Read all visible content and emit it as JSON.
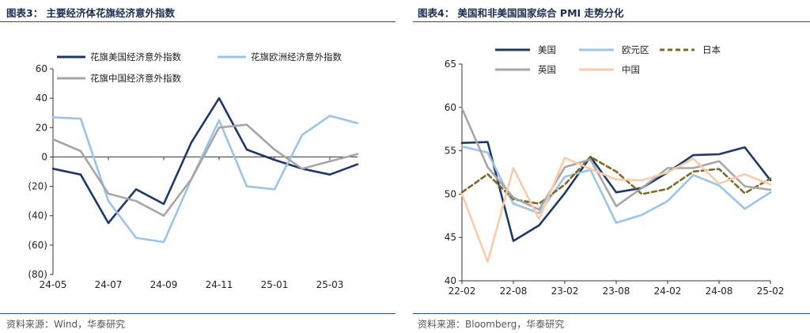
{
  "left": {
    "title": "图表3：  主要经济体花旗经济意外指数",
    "source": "资料来源：Wind，华泰研究"
  },
  "right": {
    "title": "图表4：  美国和非美国国家综合 PMI 走势分化",
    "source": "资料来源：Bloomberg，华泰研究"
  },
  "colors": {
    "navy": "#1f3864",
    "lightblue": "#9dc3e6",
    "gray": "#a6a6a6",
    "olive": "#7b6b2a",
    "peach": "#f8cbad",
    "rule": "#2c4a7c"
  },
  "chart_data": [
    {
      "type": "line",
      "title": "",
      "x": [
        "24-05",
        "24-06",
        "24-07",
        "24-08",
        "24-09",
        "24-10",
        "24-11",
        "24-12",
        "25-01",
        "25-02",
        "25-03",
        "25-04"
      ],
      "x_ticks": [
        "24-05",
        "24-07",
        "24-09",
        "24-11",
        "25-01",
        "25-03"
      ],
      "y_ticks": [
        "60",
        "40",
        "20",
        "0",
        "(20)",
        "(40)",
        "(60)",
        "(80)"
      ],
      "ylim": [
        -80,
        60
      ],
      "legend_position": "top-left",
      "series": [
        {
          "name": "花旗美国经济意外指数",
          "color": "#1f3864",
          "style": "solid",
          "values": [
            -8,
            -12,
            -45,
            -22,
            -32,
            10,
            40,
            5,
            -2,
            -8,
            -12,
            -5
          ]
        },
        {
          "name": "花旗欧洲经济意外指数",
          "color": "#9dc3e6",
          "style": "solid",
          "values": [
            27,
            26,
            -30,
            -55,
            -58,
            -15,
            25,
            -20,
            -22,
            15,
            28,
            23
          ]
        },
        {
          "name": "花旗中国经济意外指数",
          "color": "#a6a6a6",
          "style": "solid",
          "values": [
            12,
            4,
            -25,
            -30,
            -40,
            -15,
            20,
            22,
            5,
            -8,
            -3,
            2
          ]
        }
      ]
    },
    {
      "type": "line",
      "title": "",
      "x": [
        "22-02",
        "22-05",
        "22-08",
        "22-11",
        "23-02",
        "23-05",
        "23-08",
        "23-11",
        "24-02",
        "24-05",
        "24-08",
        "24-11",
        "25-02"
      ],
      "x_ticks": [
        "22-02",
        "22-08",
        "23-02",
        "23-08",
        "24-02",
        "24-08",
        "25-02"
      ],
      "y_ticks": [
        "65",
        "60",
        "55",
        "50",
        "45",
        "40"
      ],
      "ylim": [
        40,
        65
      ],
      "legend_position": "top",
      "series": [
        {
          "name": "美国",
          "color": "#1f3864",
          "style": "solid",
          "values": [
            55.9,
            56.0,
            44.6,
            46.4,
            50.1,
            54.3,
            50.2,
            50.7,
            52.5,
            54.5,
            54.6,
            55.4,
            51.6
          ]
        },
        {
          "name": "欧元区",
          "color": "#9dc3e6",
          "style": "solid",
          "values": [
            55.5,
            54.8,
            48.9,
            47.8,
            52.0,
            52.8,
            46.7,
            47.6,
            49.2,
            52.2,
            51.0,
            48.3,
            50.2
          ]
        },
        {
          "name": "日本",
          "color": "#7b6b2a",
          "style": "dashed",
          "values": [
            50.2,
            52.3,
            49.4,
            48.9,
            51.1,
            54.3,
            52.6,
            50.0,
            50.6,
            52.6,
            52.9,
            50.1,
            51.8
          ]
        },
        {
          "name": "英国",
          "color": "#a6a6a6",
          "style": "solid",
          "values": [
            59.9,
            53.1,
            49.6,
            48.2,
            53.1,
            54.0,
            48.6,
            50.7,
            53.0,
            53.0,
            53.8,
            50.9,
            50.5
          ]
        },
        {
          "name": "中国",
          "color": "#f8cbad",
          "style": "solid",
          "values": [
            50.0,
            42.2,
            53.0,
            47.1,
            54.2,
            52.9,
            51.7,
            51.6,
            52.5,
            54.1,
            51.2,
            52.3,
            51.1
          ]
        }
      ]
    }
  ]
}
